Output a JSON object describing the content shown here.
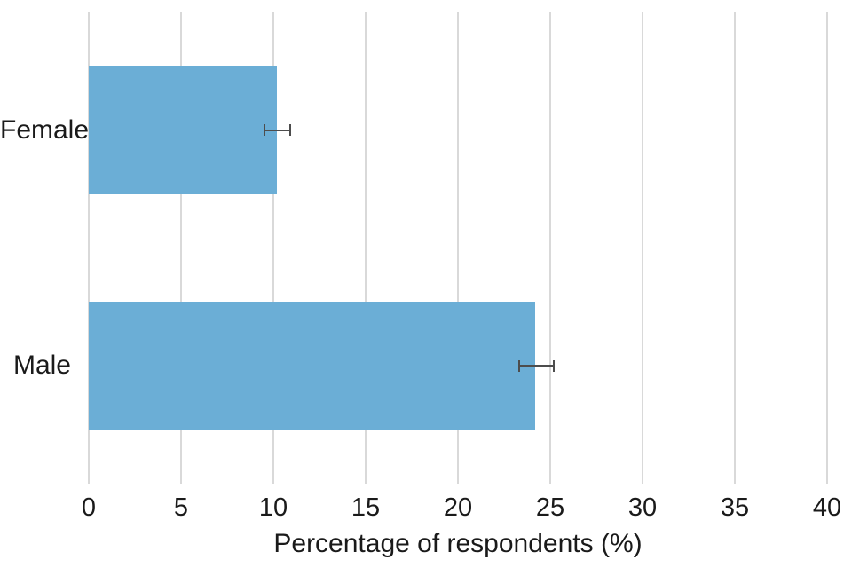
{
  "chart_data": {
    "type": "bar",
    "orientation": "horizontal",
    "title": "",
    "xlabel": "Percentage of respondents (%)",
    "ylabel": "",
    "categories": [
      "Female",
      "Male"
    ],
    "values": [
      10.2,
      24.2
    ],
    "error_low": [
      9.5,
      23.3
    ],
    "error_high": [
      10.9,
      25.2
    ],
    "xlim": [
      0,
      40
    ],
    "xticks": [
      0,
      5,
      10,
      15,
      20,
      25,
      30,
      35,
      40
    ],
    "grid": "vertical",
    "legend": "none",
    "bar_color": "#6BAED6",
    "error_color": "#4D4D4D",
    "grid_color": "#D9D9D9",
    "text_color": "#1A1A1A",
    "background": "#FFFFFF"
  }
}
